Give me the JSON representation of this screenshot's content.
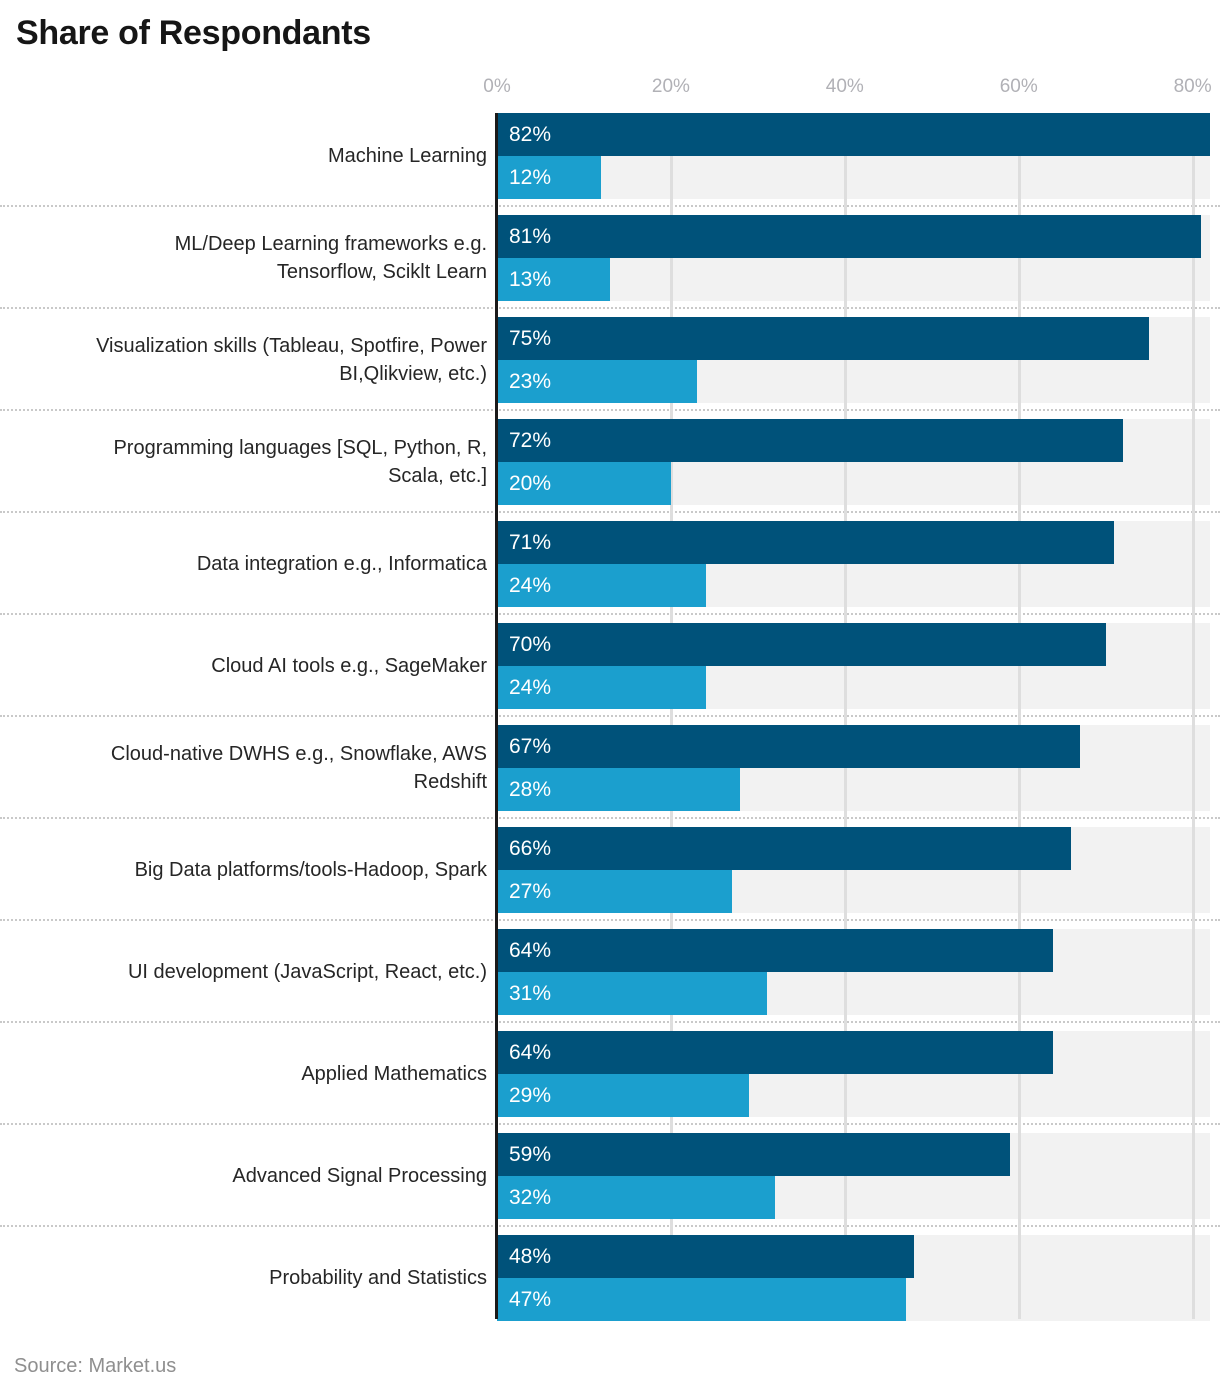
{
  "title": "Share of Respondants",
  "source": "Source: Market.us",
  "chart_data": {
    "type": "bar",
    "orientation": "horizontal",
    "title": "Share of Respondants",
    "xlabel": "",
    "ylabel": "",
    "xlim": [
      0,
      82
    ],
    "ticks": [
      0,
      20,
      40,
      60,
      80
    ],
    "tick_labels": [
      "0%",
      "20%",
      "40%",
      "60%",
      "80%"
    ],
    "grid": true,
    "legend": "none",
    "colors": {
      "primary": "#00527a",
      "secondary": "#1b9fce",
      "track": "#f2f2f2"
    },
    "categories": [
      "Machine Learning",
      "ML/Deep Learning frameworks e.g.\nTensorflow, Sciklt Learn",
      "Visualization skills (Tableau, Spotfire, Power\nBI,Qlikview, etc.)",
      "Programming languages [SQL, Python, R,\nScala, etc.]",
      "Data integration e.g., Informatica",
      "Cloud AI tools e.g., SageMaker",
      "Cloud-native DWHS e.g., Snowflake, AWS\nRedshift",
      "Big Data platforms/tools-Hadoop, Spark",
      "UI development (JavaScript, React, etc.)",
      "Applied Mathematics",
      "Advanced Signal Processing",
      "Probability and Statistics"
    ],
    "series": [
      {
        "name": "primary",
        "values": [
          82,
          81,
          75,
          72,
          71,
          70,
          67,
          66,
          64,
          64,
          59,
          48
        ],
        "labels": [
          "82%",
          "81%",
          "75%",
          "72%",
          "71%",
          "70%",
          "67%",
          "66%",
          "64%",
          "64%",
          "59%",
          "48%"
        ]
      },
      {
        "name": "secondary",
        "values": [
          12,
          13,
          23,
          20,
          24,
          24,
          28,
          27,
          31,
          29,
          32,
          47
        ],
        "labels": [
          "12%",
          "13%",
          "23%",
          "20%",
          "24%",
          "24%",
          "28%",
          "27%",
          "31%",
          "29%",
          "32%",
          "47%"
        ]
      }
    ]
  }
}
